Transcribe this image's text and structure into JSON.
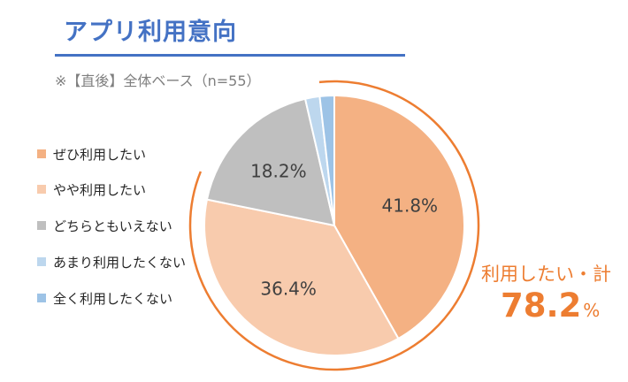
{
  "header": {
    "title": "アプリ利用意向",
    "subtitle": "※【直後】全体ベース（n=55）"
  },
  "chart_data": {
    "type": "pie",
    "unit": "%",
    "slices": [
      {
        "label": "ぜひ利用したい",
        "value": 41.8,
        "color": "#f4b183",
        "data_label": "41.8%"
      },
      {
        "label": "やや利用したい",
        "value": 36.4,
        "color": "#f8cbad",
        "data_label": "36.4%"
      },
      {
        "label": "どちらともいえない",
        "value": 18.2,
        "color": "#bfbfbf",
        "data_label": "18.2%"
      },
      {
        "label": "あまり利用したくない",
        "value": 1.8,
        "color": "#bdd7ee",
        "data_label": ""
      },
      {
        "label": "全く利用したくない",
        "value": 1.8,
        "color": "#9dc3e6",
        "data_label": ""
      }
    ],
    "legend_position": "left",
    "start_angle": "12 o'clock, clockwise",
    "annotation": {
      "label": "利用したい・計",
      "value": "78.2",
      "unit": "%",
      "color": "#ed7d31"
    }
  }
}
